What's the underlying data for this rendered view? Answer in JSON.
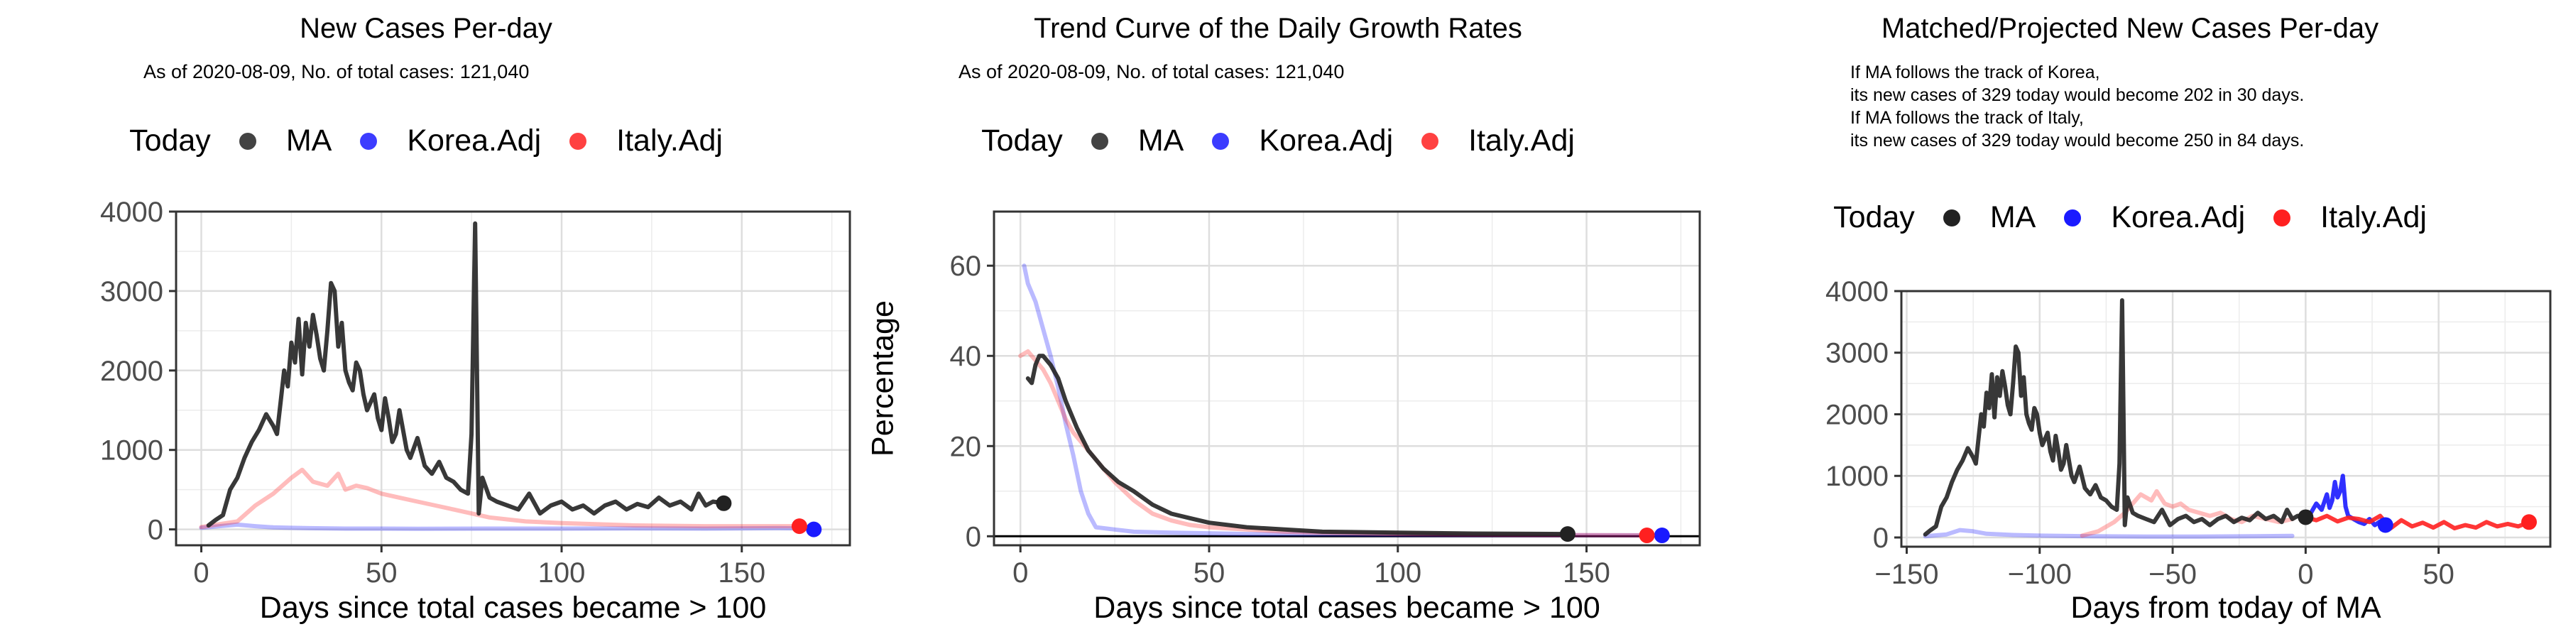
{
  "legend": {
    "title": "Today",
    "items": [
      {
        "label": "MA",
        "color": "#222222"
      },
      {
        "label": "Korea.Adj",
        "color": "#1a1aff"
      },
      {
        "label": "Italy.Adj",
        "color": "#ff2020"
      }
    ]
  },
  "panels": [
    {
      "title": "New Cases Per-day",
      "subtitle": "As of 2020-08-09, No. of total cases: 121,040"
    },
    {
      "title": "Trend Curve of the Daily Growth Rates",
      "subtitle": "As of 2020-08-09, No. of total cases: 121,040"
    },
    {
      "title": "Matched/Projected New Cases Per-day",
      "notes": [
        "If MA follows the track of Korea,",
        "its new cases of 329 today would become 202 in 30 days.",
        "If MA follows the track of Italy,",
        "its new cases of 329 today would become 250 in 84 days."
      ]
    }
  ],
  "chart_data": [
    {
      "type": "line",
      "title": "New Cases Per-day",
      "xlabel": "Days since total cases became > 100",
      "ylabel": "",
      "xlim": [
        -7,
        180
      ],
      "ylim": [
        -200,
        4000
      ],
      "xticks": [
        0,
        50,
        100,
        150
      ],
      "yticks": [
        0,
        1000,
        2000,
        3000,
        4000
      ],
      "grid": true,
      "legend_position": "top",
      "series": [
        {
          "name": "MA",
          "color": "#222222",
          "opacity": 0.9,
          "x": [
            2,
            4,
            6,
            8,
            10,
            12,
            14,
            16,
            18,
            20,
            21,
            22,
            23,
            24,
            25,
            26,
            27,
            28,
            29,
            30,
            31,
            32,
            33,
            34,
            35,
            36,
            37,
            38,
            39,
            40,
            41,
            42,
            43,
            44,
            45,
            46,
            47,
            48,
            49,
            50,
            51,
            52,
            53,
            54,
            55,
            56,
            57,
            58,
            60,
            62,
            64,
            66,
            68,
            70,
            72,
            74,
            75,
            76,
            77,
            78,
            80,
            82,
            85,
            88,
            91,
            94,
            97,
            100,
            103,
            106,
            109,
            112,
            115,
            118,
            121,
            124,
            127,
            130,
            133,
            136,
            138,
            140,
            142,
            145
          ],
          "y": [
            50,
            120,
            180,
            500,
            650,
            900,
            1100,
            1250,
            1450,
            1300,
            1200,
            1600,
            2000,
            1800,
            2350,
            2100,
            2650,
            1950,
            2600,
            2300,
            2700,
            2450,
            2150,
            2000,
            2500,
            3100,
            3000,
            2300,
            2600,
            2000,
            1850,
            1750,
            2100,
            2000,
            1700,
            1500,
            1600,
            1700,
            1400,
            1250,
            1650,
            1400,
            1100,
            1200,
            1500,
            1250,
            1000,
            900,
            1150,
            800,
            700,
            850,
            650,
            600,
            500,
            450,
            1200,
            3850,
            200,
            650,
            400,
            350,
            300,
            250,
            450,
            200,
            300,
            350,
            250,
            300,
            200,
            300,
            350,
            250,
            320,
            280,
            400,
            300,
            350,
            250,
            450,
            300,
            350,
            329
          ]
        },
        {
          "name": "Korea.Adj",
          "color": "#1a1aff",
          "opacity": 0.3,
          "x": [
            0,
            5,
            10,
            15,
            20,
            25,
            30,
            40,
            50,
            60,
            80,
            100,
            120,
            140,
            160,
            168
          ],
          "y": [
            20,
            40,
            60,
            40,
            25,
            20,
            15,
            10,
            10,
            8,
            10,
            10,
            12,
            10,
            15,
            12
          ]
        },
        {
          "name": "Italy.Adj",
          "color": "#ff2020",
          "opacity": 0.3,
          "x": [
            0,
            10,
            15,
            20,
            25,
            28,
            31,
            35,
            38,
            40,
            43,
            46,
            50,
            55,
            60,
            65,
            70,
            80,
            90,
            100,
            120,
            140,
            160,
            166
          ],
          "y": [
            30,
            100,
            300,
            450,
            650,
            750,
            600,
            550,
            700,
            500,
            550,
            520,
            450,
            400,
            350,
            300,
            250,
            150,
            100,
            80,
            50,
            40,
            40,
            40
          ]
        }
      ],
      "today_markers": [
        {
          "series": "MA",
          "x": 145,
          "y": 329
        },
        {
          "series": "Korea.Adj",
          "x": 170,
          "y": 0
        },
        {
          "series": "Italy.Adj",
          "x": 166,
          "y": 40
        }
      ]
    },
    {
      "type": "line",
      "title": "Trend Curve of the Daily Growth Rates",
      "xlabel": "Days since total cases became > 100",
      "ylabel": "Percentage",
      "xlim": [
        -7,
        180
      ],
      "ylim": [
        -2,
        72
      ],
      "xticks": [
        0,
        50,
        100,
        150
      ],
      "yticks": [
        0,
        20,
        40,
        60
      ],
      "grid": true,
      "hline": 0,
      "legend_position": "top",
      "series": [
        {
          "name": "MA",
          "color": "#222222",
          "opacity": 0.9,
          "x": [
            2,
            3,
            4,
            5,
            6,
            7,
            8,
            10,
            12,
            15,
            18,
            22,
            26,
            30,
            35,
            40,
            45,
            50,
            60,
            70,
            80,
            100,
            120,
            145
          ],
          "y": [
            35,
            34,
            38,
            40,
            40,
            39,
            38,
            35,
            30,
            24,
            19,
            15,
            12,
            10,
            7,
            5,
            4,
            3,
            2,
            1.5,
            1,
            0.8,
            0.6,
            0.5
          ]
        },
        {
          "name": "Korea.Adj",
          "color": "#1a1aff",
          "opacity": 0.3,
          "x": [
            1,
            2,
            4,
            6,
            8,
            10,
            12,
            14,
            16,
            18,
            20,
            25,
            30,
            40,
            60,
            100,
            170
          ],
          "y": [
            60,
            56,
            52,
            46,
            40,
            33,
            25,
            18,
            10,
            5,
            2,
            1.5,
            1,
            0.8,
            0.5,
            0.3,
            0.2
          ]
        },
        {
          "name": "Italy.Adj",
          "color": "#ff2020",
          "opacity": 0.3,
          "x": [
            0,
            2,
            4,
            6,
            8,
            10,
            12,
            14,
            16,
            18,
            20,
            25,
            30,
            35,
            40,
            45,
            50,
            60,
            70,
            80,
            100,
            130,
            166
          ],
          "y": [
            40,
            41,
            39,
            37,
            34,
            30,
            26,
            23,
            21,
            19,
            17,
            12,
            8,
            5,
            3.5,
            2.5,
            2,
            1.5,
            1,
            0.8,
            0.5,
            0.3,
            0.2
          ]
        }
      ],
      "today_markers": [
        {
          "series": "MA",
          "x": 145,
          "y": 0.5
        },
        {
          "series": "Korea.Adj",
          "x": 170,
          "y": 0.2
        },
        {
          "series": "Italy.Adj",
          "x": 166,
          "y": 0.2
        }
      ]
    },
    {
      "type": "line",
      "title": "Matched/Projected New Cases Per-day",
      "xlabel": "Days from today of MA",
      "ylabel": "",
      "xlim": [
        -152,
        92
      ],
      "ylim": [
        -150,
        4000
      ],
      "xticks": [
        -150,
        -100,
        -50,
        0,
        50
      ],
      "yticks": [
        0,
        1000,
        2000,
        3000,
        4000
      ],
      "grid": true,
      "legend_position": "top",
      "series": [
        {
          "name": "MA",
          "color": "#222222",
          "opacity": 0.9,
          "x": [
            -143,
            -141,
            -139,
            -137,
            -135,
            -133,
            -131,
            -129,
            -127,
            -125,
            -124,
            -123,
            -122,
            -121,
            -120,
            -119,
            -118,
            -117,
            -116,
            -115,
            -114,
            -113,
            -112,
            -111,
            -110,
            -109,
            -108,
            -107,
            -106,
            -105,
            -104,
            -103,
            -102,
            -101,
            -100,
            -99,
            -98,
            -97,
            -96,
            -95,
            -94,
            -93,
            -92,
            -91,
            -90,
            -89,
            -88,
            -87,
            -85,
            -83,
            -81,
            -79,
            -77,
            -75,
            -73,
            -71,
            -70,
            -69,
            -68,
            -67,
            -65,
            -63,
            -60,
            -57,
            -54,
            -51,
            -48,
            -45,
            -42,
            -39,
            -36,
            -33,
            -30,
            -27,
            -24,
            -21,
            -18,
            -15,
            -12,
            -9,
            -7,
            -5,
            -3,
            0
          ],
          "y": [
            50,
            120,
            180,
            500,
            650,
            900,
            1100,
            1250,
            1450,
            1300,
            1200,
            1600,
            2000,
            1800,
            2350,
            2100,
            2650,
            1950,
            2600,
            2300,
            2700,
            2450,
            2150,
            2000,
            2500,
            3100,
            3000,
            2300,
            2600,
            2000,
            1850,
            1750,
            2100,
            2000,
            1700,
            1500,
            1600,
            1700,
            1400,
            1250,
            1650,
            1400,
            1100,
            1200,
            1500,
            1250,
            1000,
            900,
            1150,
            800,
            700,
            850,
            650,
            600,
            500,
            450,
            1200,
            3850,
            200,
            650,
            400,
            350,
            300,
            250,
            450,
            200,
            300,
            350,
            250,
            300,
            200,
            300,
            350,
            250,
            320,
            280,
            400,
            300,
            350,
            250,
            450,
            300,
            350,
            329
          ]
        },
        {
          "name": "Korea.Adj",
          "color": "#1a1aff",
          "opacity": 0.3,
          "x": [
            -143,
            -135,
            -130,
            -125,
            -120,
            -110,
            -100,
            -80,
            -60,
            -40,
            -20,
            -5
          ],
          "y": [
            20,
            50,
            120,
            100,
            60,
            40,
            30,
            20,
            15,
            15,
            20,
            25
          ]
        },
        {
          "name": "Italy.Adj",
          "color": "#ff2020",
          "opacity": 0.3,
          "x": [
            -84,
            -78,
            -72,
            -68,
            -64,
            -62,
            -60,
            -58,
            -56,
            -53,
            -50,
            -47,
            -44,
            -40,
            -36,
            -32,
            -28,
            -24,
            -20,
            -15,
            -10,
            -5
          ],
          "y": [
            30,
            100,
            250,
            400,
            600,
            700,
            650,
            600,
            750,
            550,
            500,
            550,
            450,
            400,
            350,
            400,
            300,
            250,
            350,
            300,
            250,
            300
          ]
        },
        {
          "name": "Korea.Adj",
          "color": "#1a1aff",
          "opacity": 0.9,
          "projection": true,
          "x": [
            0,
            2,
            4,
            6,
            8,
            9,
            10,
            11,
            12,
            13,
            14,
            15,
            16,
            18,
            20,
            22,
            24,
            26,
            28,
            30
          ],
          "y": [
            329,
            400,
            550,
            450,
            700,
            480,
            600,
            900,
            650,
            750,
            1000,
            500,
            350,
            300,
            250,
            220,
            300,
            200,
            260,
            202
          ]
        },
        {
          "name": "Italy.Adj",
          "color": "#ff2020",
          "opacity": 0.9,
          "projection": true,
          "x": [
            0,
            4,
            8,
            12,
            16,
            20,
            24,
            28,
            32,
            36,
            40,
            44,
            48,
            52,
            56,
            60,
            64,
            68,
            72,
            76,
            80,
            84
          ],
          "y": [
            329,
            280,
            350,
            260,
            320,
            300,
            250,
            350,
            150,
            280,
            180,
            240,
            160,
            250,
            150,
            200,
            160,
            250,
            180,
            220,
            180,
            250
          ]
        }
      ],
      "today_markers": [
        {
          "series": "MA",
          "x": 0,
          "y": 329
        },
        {
          "series": "Korea.Adj",
          "x": 30,
          "y": 202
        },
        {
          "series": "Italy.Adj",
          "x": 84,
          "y": 250
        }
      ]
    }
  ]
}
